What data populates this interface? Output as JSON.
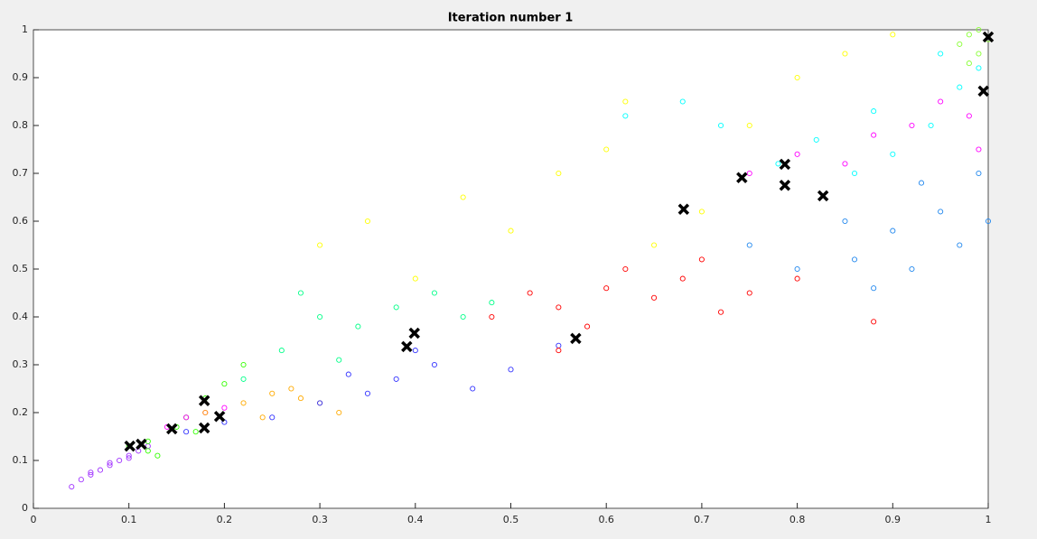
{
  "chart_data": {
    "type": "scatter",
    "title": "Iteration number 1",
    "xlim": [
      0,
      1
    ],
    "ylim": [
      0,
      1
    ],
    "xticks": [
      0,
      0.1,
      0.2,
      0.3,
      0.4,
      0.5,
      0.6,
      0.7,
      0.8,
      0.9,
      1
    ],
    "yticks": [
      0,
      0.1,
      0.2,
      0.3,
      0.4,
      0.5,
      0.6,
      0.7,
      0.8,
      0.9,
      1
    ],
    "series": [
      {
        "color": "#a033ff",
        "marker": "o",
        "x": [
          0.04,
          0.05,
          0.06,
          0.07,
          0.08,
          0.09,
          0.1,
          0.11,
          0.06,
          0.08,
          0.1,
          0.12
        ],
        "y": [
          0.045,
          0.06,
          0.07,
          0.08,
          0.09,
          0.1,
          0.11,
          0.12,
          0.075,
          0.095,
          0.105,
          0.13
        ]
      },
      {
        "color": "#33ff00",
        "marker": "o",
        "x": [
          0.1,
          0.12,
          0.13,
          0.15,
          0.17,
          0.18,
          0.2,
          0.22,
          0.12,
          0.16
        ],
        "y": [
          0.13,
          0.14,
          0.11,
          0.17,
          0.16,
          0.23,
          0.26,
          0.3,
          0.12,
          0.19
        ]
      },
      {
        "color": "#ff00ff",
        "marker": "o",
        "x": [
          0.14,
          0.16,
          0.18,
          0.2,
          0.75,
          0.8,
          0.85,
          0.88,
          0.92,
          0.95,
          0.98,
          0.99
        ],
        "y": [
          0.17,
          0.19,
          0.2,
          0.21,
          0.7,
          0.74,
          0.72,
          0.78,
          0.8,
          0.85,
          0.82,
          0.75
        ]
      },
      {
        "color": "#ffaa00",
        "marker": "o",
        "x": [
          0.18,
          0.22,
          0.25,
          0.28,
          0.3,
          0.32,
          0.24,
          0.27
        ],
        "y": [
          0.2,
          0.22,
          0.24,
          0.23,
          0.22,
          0.2,
          0.19,
          0.25
        ]
      },
      {
        "color": "#3333ff",
        "marker": "o",
        "x": [
          0.16,
          0.2,
          0.25,
          0.3,
          0.33,
          0.38,
          0.42,
          0.46,
          0.5,
          0.55,
          0.4,
          0.35
        ],
        "y": [
          0.16,
          0.18,
          0.19,
          0.22,
          0.28,
          0.27,
          0.3,
          0.25,
          0.29,
          0.34,
          0.33,
          0.24
        ]
      },
      {
        "color": "#00ff88",
        "marker": "o",
        "x": [
          0.22,
          0.26,
          0.3,
          0.34,
          0.38,
          0.42,
          0.45,
          0.48,
          0.32,
          0.28
        ],
        "y": [
          0.27,
          0.33,
          0.4,
          0.38,
          0.42,
          0.45,
          0.4,
          0.43,
          0.31,
          0.45
        ]
      },
      {
        "color": "#ff0000",
        "marker": "o",
        "x": [
          0.48,
          0.52,
          0.55,
          0.58,
          0.6,
          0.62,
          0.65,
          0.68,
          0.7,
          0.72,
          0.75,
          0.8,
          0.88,
          0.55
        ],
        "y": [
          0.4,
          0.45,
          0.42,
          0.38,
          0.46,
          0.5,
          0.44,
          0.48,
          0.52,
          0.41,
          0.45,
          0.48,
          0.39,
          0.33
        ]
      },
      {
        "color": "#ffff00",
        "marker": "o",
        "x": [
          0.3,
          0.35,
          0.4,
          0.45,
          0.5,
          0.55,
          0.6,
          0.65,
          0.7,
          0.75,
          0.8,
          0.85,
          0.9,
          0.62
        ],
        "y": [
          0.55,
          0.6,
          0.48,
          0.65,
          0.58,
          0.7,
          0.75,
          0.55,
          0.62,
          0.8,
          0.9,
          0.95,
          0.99,
          0.85
        ]
      },
      {
        "color": "#2288ee",
        "marker": "o",
        "x": [
          0.75,
          0.8,
          0.85,
          0.88,
          0.9,
          0.92,
          0.95,
          0.97,
          0.99,
          1.0,
          0.93,
          0.86
        ],
        "y": [
          0.55,
          0.5,
          0.6,
          0.46,
          0.58,
          0.5,
          0.62,
          0.55,
          0.7,
          0.6,
          0.68,
          0.52
        ]
      },
      {
        "color": "#00ffff",
        "marker": "o",
        "x": [
          0.62,
          0.68,
          0.72,
          0.78,
          0.82,
          0.86,
          0.9,
          0.94,
          0.97,
          0.99,
          0.88,
          0.95
        ],
        "y": [
          0.82,
          0.85,
          0.8,
          0.72,
          0.77,
          0.7,
          0.74,
          0.8,
          0.88,
          0.92,
          0.83,
          0.95
        ]
      },
      {
        "color": "#88ff33",
        "marker": "o",
        "x": [
          0.97,
          0.98,
          0.99,
          1.0,
          0.99,
          0.98
        ],
        "y": [
          0.97,
          0.99,
          1.0,
          0.98,
          0.95,
          0.93
        ]
      },
      {
        "color": "#000000",
        "marker": "x",
        "x": [
          0.101,
          0.113,
          0.145,
          0.179,
          0.179,
          0.195,
          0.391,
          0.399,
          0.568,
          0.681,
          0.742,
          0.787,
          0.787,
          0.827,
          0.995,
          1.0
        ],
        "y": [
          0.13,
          0.134,
          0.166,
          0.225,
          0.168,
          0.192,
          0.338,
          0.366,
          0.355,
          0.625,
          0.691,
          0.719,
          0.675,
          0.653,
          0.872,
          0.985
        ]
      }
    ]
  }
}
